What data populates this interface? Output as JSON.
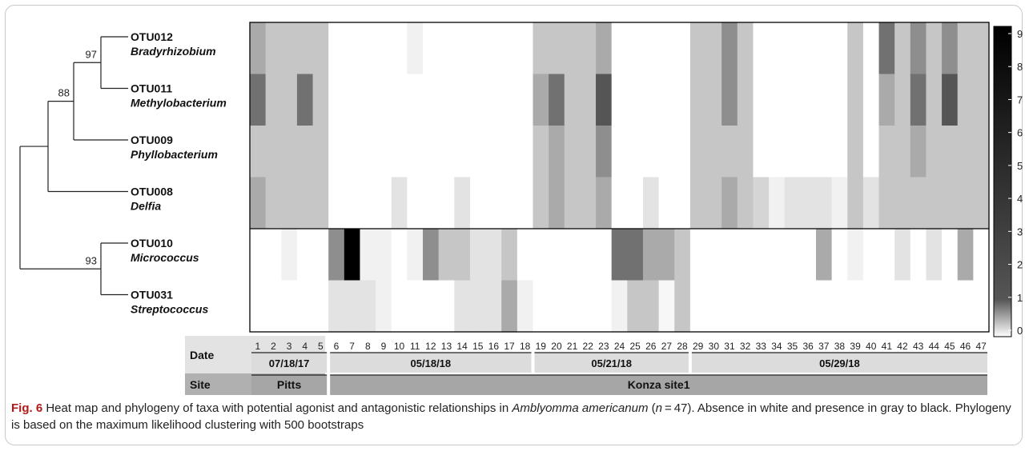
{
  "chart_data": {
    "type": "heatmap",
    "samples": [
      "1",
      "2",
      "3",
      "4",
      "5",
      "6",
      "7",
      "8",
      "9",
      "10",
      "11",
      "12",
      "13",
      "14",
      "15",
      "16",
      "17",
      "18",
      "19",
      "20",
      "21",
      "22",
      "23",
      "24",
      "25",
      "26",
      "27",
      "28",
      "29",
      "30",
      "31",
      "32",
      "33",
      "34",
      "35",
      "36",
      "37",
      "38",
      "39",
      "40",
      "41",
      "42",
      "43",
      "44",
      "45",
      "46",
      "47"
    ],
    "rows": [
      {
        "otu": "OTU012",
        "genus": "Bradyrhizobium",
        "values": [
          3,
          2,
          2,
          2,
          2,
          0,
          0,
          0,
          0,
          0,
          0.5,
          0,
          0,
          0,
          0,
          0,
          0,
          0,
          2,
          2,
          2,
          2,
          3,
          0,
          0,
          0,
          0,
          0,
          2,
          2,
          4,
          2,
          0,
          0,
          0,
          0,
          0,
          0,
          2,
          0,
          5,
          2,
          4,
          2,
          4,
          2,
          2
        ]
      },
      {
        "otu": "OTU011",
        "genus": "Methylobacterium",
        "values": [
          5,
          2,
          2,
          5,
          2,
          0,
          0,
          0,
          0,
          0,
          0,
          0,
          0,
          0,
          0,
          0,
          0,
          0,
          3,
          5,
          2,
          2,
          6,
          0,
          0,
          0,
          0,
          0,
          2,
          2,
          4,
          2,
          0,
          0,
          0,
          0,
          0,
          0,
          2,
          0,
          3,
          2,
          5,
          2,
          6,
          2,
          2
        ]
      },
      {
        "otu": "OTU009",
        "genus": "Phyllobacterium",
        "values": [
          2,
          2,
          2,
          2,
          2,
          0,
          0,
          0,
          0,
          0,
          0,
          0,
          0,
          0,
          0,
          0,
          0,
          0,
          2,
          3,
          2,
          2,
          4,
          0,
          0,
          0,
          0,
          0,
          2,
          2,
          2,
          2,
          0,
          0,
          0,
          0,
          0,
          0,
          2,
          0,
          2,
          2,
          3,
          2,
          2,
          2,
          2
        ]
      },
      {
        "otu": "OTU008",
        "genus": "Delfia",
        "values": [
          3,
          2,
          2,
          2,
          2,
          0,
          0,
          0,
          0,
          1,
          0,
          0,
          0,
          1,
          0,
          0,
          0,
          0,
          2,
          3,
          2,
          2,
          3,
          0,
          0,
          1,
          0,
          0,
          2,
          2,
          3,
          2,
          1.5,
          0.5,
          1,
          1,
          1,
          0.5,
          2,
          1,
          2,
          2,
          2,
          2,
          2,
          2,
          2
        ]
      },
      {
        "otu": "OTU010",
        "genus": "Micrococcus",
        "values": [
          0,
          0,
          0.5,
          0,
          0,
          4,
          9,
          0.5,
          0.5,
          0,
          0.5,
          4,
          2,
          2,
          1,
          1,
          2,
          0,
          0,
          0,
          0,
          0,
          0,
          5,
          5,
          3,
          3,
          2,
          0,
          0,
          0,
          0,
          0,
          0,
          0,
          0,
          3,
          0,
          0.5,
          0,
          0,
          1,
          0,
          1,
          0,
          3,
          0
        ]
      },
      {
        "otu": "OTU031",
        "genus": "Streptococcus",
        "values": [
          0,
          0,
          0,
          0,
          0,
          1,
          1,
          1,
          0.5,
          0,
          0,
          0,
          0,
          1,
          1,
          1,
          3,
          0.5,
          0,
          0,
          0,
          0,
          0,
          0.5,
          2,
          2,
          0.3,
          2,
          0,
          0,
          0,
          0,
          0,
          0,
          0,
          0,
          0,
          0,
          0,
          0,
          0,
          0,
          0,
          0,
          0,
          0,
          0
        ]
      }
    ],
    "bootstraps": [
      "97",
      "88",
      "93"
    ],
    "color_scale": {
      "min": 0,
      "max": 9,
      "low_color": "#ffffff",
      "high_color": "#000000",
      "ticks": [
        "0",
        "1",
        "2",
        "3",
        "4",
        "5",
        "6",
        "7",
        "8",
        "9"
      ]
    },
    "date_label": "Date",
    "site_label": "Site",
    "date_groups": [
      {
        "label": "07/18/17",
        "from": 1,
        "to": 5
      },
      {
        "label": "05/18/18",
        "from": 6,
        "to": 18
      },
      {
        "label": "05/21/18",
        "from": 19,
        "to": 28
      },
      {
        "label": "05/29/18",
        "from": 29,
        "to": 47
      }
    ],
    "site_groups": [
      {
        "label": "Pitts",
        "from": 1,
        "to": 5
      },
      {
        "label": "Konza site1",
        "from": 6,
        "to": 47
      }
    ]
  },
  "caption": {
    "fig_label": "Fig. 6",
    "text_1": "  Heat map and phylogeny of taxa with potential agonist and antagonistic relationships in ",
    "species": "Amblyomma americanum",
    "text_2": " (",
    "n_var": "n",
    "text_3": " = 47). Absence in white and presence in gray to black. Phylogeny is based on the maximum likelihood clustering with 500 bootstraps"
  }
}
